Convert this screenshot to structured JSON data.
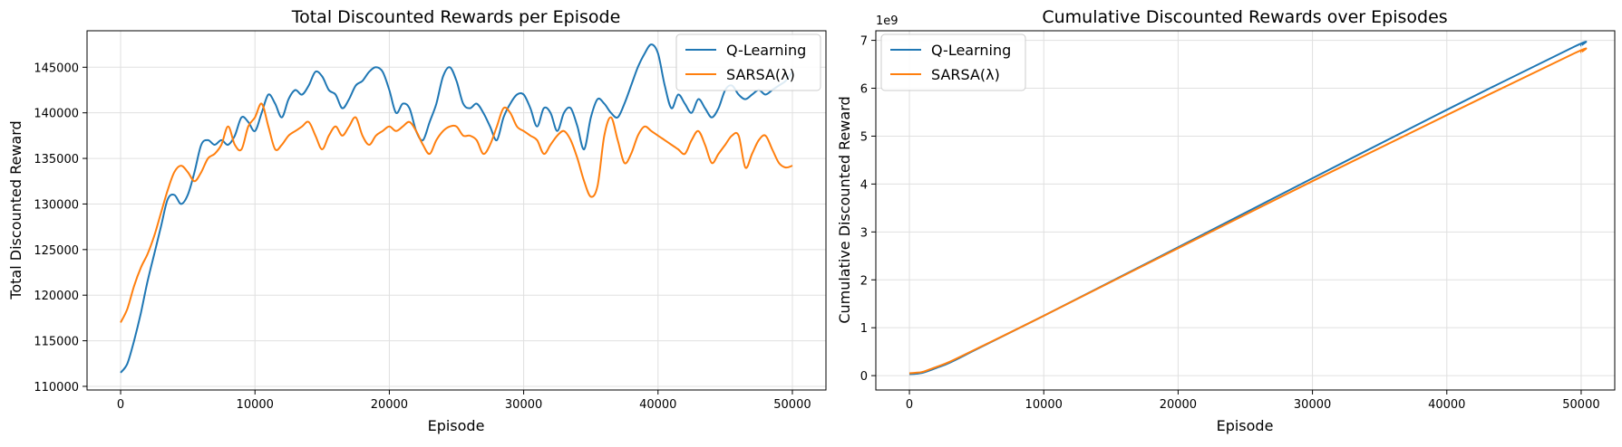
{
  "colors": {
    "q_learning": "#1f77b4",
    "sarsa": "#ff7f0e",
    "grid": "#e0e0e0",
    "axis": "#000000"
  },
  "chart_data": [
    {
      "type": "line",
      "title": "Total Discounted Rewards per Episode",
      "xlabel": "Episode",
      "ylabel": "Total Discounted Reward",
      "xlim": [
        -2500,
        52500
      ],
      "ylim": [
        109600,
        149000
      ],
      "xticks": [
        0,
        10000,
        20000,
        30000,
        40000,
        50000
      ],
      "yticks": [
        110000,
        115000,
        120000,
        125000,
        130000,
        135000,
        140000,
        145000
      ],
      "grid": true,
      "legend_position": "top-right",
      "series": [
        {
          "name": "Q-Learning",
          "color": "#1f77b4",
          "x": [
            0,
            500,
            1000,
            1500,
            2000,
            2500,
            3000,
            3500,
            4000,
            4500,
            5000,
            5500,
            6000,
            6500,
            7000,
            7500,
            8000,
            8500,
            9000,
            9500,
            10000,
            10500,
            11000,
            11500,
            12000,
            12500,
            13000,
            13500,
            14000,
            14500,
            15000,
            15500,
            16000,
            16500,
            17000,
            17500,
            18000,
            18500,
            19000,
            19500,
            20000,
            20500,
            21000,
            21500,
            22000,
            22500,
            23000,
            23500,
            24000,
            24500,
            25000,
            25500,
            26000,
            26500,
            27000,
            27500,
            28000,
            28500,
            29000,
            29500,
            30000,
            30500,
            31000,
            31500,
            32000,
            32500,
            33000,
            33500,
            34000,
            34500,
            35000,
            35500,
            36000,
            36500,
            37000,
            37500,
            38000,
            38500,
            39000,
            39500,
            40000,
            40500,
            41000,
            41500,
            42000,
            42500,
            43000,
            43500,
            44000,
            44500,
            45000,
            45500,
            46000,
            46500,
            47000,
            47500,
            48000,
            48500,
            49000,
            49500,
            50000
          ],
          "values": [
            111500,
            112500,
            115000,
            118000,
            121500,
            124500,
            127500,
            130500,
            131000,
            130000,
            131000,
            133500,
            136500,
            137000,
            136500,
            137000,
            136500,
            137500,
            139500,
            139000,
            138000,
            140000,
            142000,
            141000,
            139500,
            141500,
            142500,
            142000,
            143000,
            144500,
            144000,
            142500,
            142000,
            140500,
            141500,
            143000,
            143500,
            144500,
            145000,
            144500,
            142500,
            140000,
            141000,
            140500,
            138000,
            137000,
            139000,
            141000,
            144000,
            145000,
            143500,
            141000,
            140500,
            141000,
            140000,
            138500,
            137000,
            139500,
            141000,
            142000,
            142000,
            140500,
            138500,
            140500,
            140000,
            138000,
            140000,
            140500,
            138500,
            136000,
            139500,
            141500,
            141000,
            140000,
            139500,
            141000,
            143000,
            145000,
            146500,
            147500,
            146500,
            143000,
            140500,
            142000,
            141000,
            140000,
            141500,
            140500,
            139500,
            140500,
            142500,
            143000,
            142000,
            141500,
            142000,
            142500,
            142000,
            142500,
            143000,
            143500,
            144500
          ]
        },
        {
          "name": "SARSA(λ)",
          "color": "#ff7f0e",
          "x": [
            0,
            500,
            1000,
            1500,
            2000,
            2500,
            3000,
            3500,
            4000,
            4500,
            5000,
            5500,
            6000,
            6500,
            7000,
            7500,
            8000,
            8500,
            9000,
            9500,
            10000,
            10500,
            11000,
            11500,
            12000,
            12500,
            13000,
            13500,
            14000,
            14500,
            15000,
            15500,
            16000,
            16500,
            17000,
            17500,
            18000,
            18500,
            19000,
            19500,
            20000,
            20500,
            21000,
            21500,
            22000,
            22500,
            23000,
            23500,
            24000,
            24500,
            25000,
            25500,
            26000,
            26500,
            27000,
            27500,
            28000,
            28500,
            29000,
            29500,
            30000,
            30500,
            31000,
            31500,
            32000,
            32500,
            33000,
            33500,
            34000,
            34500,
            35000,
            35500,
            36000,
            36500,
            37000,
            37500,
            38000,
            38500,
            39000,
            39500,
            40000,
            40500,
            41000,
            41500,
            42000,
            42500,
            43000,
            43500,
            44000,
            44500,
            45000,
            45500,
            46000,
            46500,
            47000,
            47500,
            48000,
            48500,
            49000,
            49500,
            50000
          ],
          "values": [
            117000,
            118500,
            121000,
            123000,
            124500,
            126500,
            129000,
            131500,
            133500,
            134200,
            133500,
            132500,
            133500,
            135000,
            135500,
            136500,
            138500,
            136500,
            136000,
            138500,
            139500,
            141000,
            138500,
            136000,
            136500,
            137500,
            138000,
            138500,
            139000,
            137500,
            136000,
            137500,
            138500,
            137500,
            138500,
            139500,
            137500,
            136500,
            137500,
            138000,
            138500,
            138000,
            138500,
            139000,
            138000,
            136500,
            135500,
            137000,
            138000,
            138500,
            138500,
            137500,
            137500,
            137000,
            135500,
            136500,
            138500,
            140500,
            140000,
            138500,
            138000,
            137500,
            137000,
            135500,
            136500,
            137500,
            138000,
            137000,
            135000,
            132500,
            130800,
            132000,
            137500,
            139500,
            137000,
            134500,
            135500,
            137500,
            138500,
            138000,
            137500,
            137000,
            136500,
            136000,
            135500,
            137000,
            138000,
            136500,
            134500,
            135500,
            136500,
            137500,
            137500,
            134000,
            135500,
            137000,
            137500,
            136000,
            134500,
            134000,
            134200
          ]
        }
      ]
    },
    {
      "type": "line",
      "title": "Cumulative Discounted Rewards over Episodes",
      "xlabel": "Episode",
      "ylabel": "Cumulative Discounted Reward",
      "offset_label": "1e9",
      "xlim": [
        -2500,
        52500
      ],
      "ylim": [
        -0.3,
        7.2
      ],
      "xticks": [
        0,
        10000,
        20000,
        30000,
        40000,
        50000
      ],
      "yticks": [
        0,
        1,
        2,
        3,
        4,
        5,
        6,
        7
      ],
      "grid": true,
      "legend_position": "top-left",
      "series": [
        {
          "name": "Q-Learning",
          "color": "#1f77b4",
          "x": [
            0,
            500,
            1000,
            2000,
            3000,
            5000,
            10000,
            20000,
            30000,
            40000,
            49500,
            50000
          ],
          "values": [
            0.03,
            0.04,
            0.06,
            0.16,
            0.27,
            0.55,
            1.25,
            2.68,
            4.12,
            5.55,
            6.87,
            6.89
          ]
        },
        {
          "name": "SARSA(λ)",
          "color": "#ff7f0e",
          "x": [
            0,
            500,
            1000,
            2000,
            3000,
            5000,
            10000,
            20000,
            30000,
            40000,
            49500,
            50000
          ],
          "values": [
            0.05,
            0.06,
            0.08,
            0.18,
            0.29,
            0.56,
            1.25,
            2.66,
            4.06,
            5.44,
            6.73,
            6.75
          ]
        }
      ]
    }
  ]
}
